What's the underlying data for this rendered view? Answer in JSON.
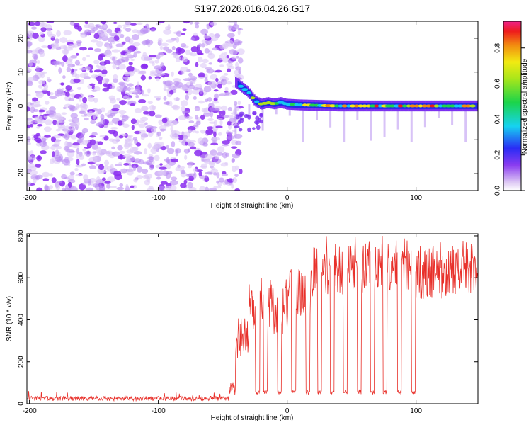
{
  "title": "S197.2026.016.04.26.G17",
  "chart_data": [
    {
      "type": "heatmap",
      "name": "spectrogram",
      "xlabel": "Height of straight line (km)",
      "ylabel": "Frequency (Hz)",
      "xlim": [
        -202,
        148
      ],
      "ylim": [
        -25,
        25
      ],
      "xticks": [
        -200,
        -100,
        0,
        100
      ],
      "yticks": [
        -20,
        -10,
        0,
        10,
        20
      ],
      "colorbar": {
        "label": "Normalized spectral amplitude",
        "range": [
          0,
          0.95
        ],
        "ticks": [
          0.0,
          0.2,
          0.4,
          0.6,
          0.8
        ]
      },
      "noise_region_x": [
        -202,
        -40
      ],
      "signal_track": {
        "x": [
          -40,
          -35,
          -30,
          -25,
          -20,
          -15,
          -10,
          -5,
          0,
          10,
          20,
          40,
          60,
          80,
          100,
          120,
          148
        ],
        "freq": [
          7,
          5.5,
          4,
          1.5,
          0.5,
          1,
          0.6,
          1,
          0.5,
          0.3,
          0.2,
          0,
          0,
          0,
          0,
          0,
          0
        ]
      }
    },
    {
      "type": "line",
      "name": "snr",
      "xlabel": "Height of straight line (km)",
      "ylabel": "SNR (10 * v/v)",
      "xlim": [
        -202,
        148
      ],
      "ylim": [
        0,
        810
      ],
      "xticks": [
        -200,
        -100,
        0,
        100
      ],
      "yticks": [
        0,
        200,
        400,
        600,
        800
      ],
      "color": "#e8302a",
      "segments": [
        {
          "x": [
            -202,
            -45
          ],
          "level": 20
        },
        {
          "x": [
            -40,
            -30
          ],
          "level": 300
        },
        {
          "x": [
            -30,
            0
          ],
          "level": 450
        },
        {
          "x": [
            0,
            20
          ],
          "level": 530
        },
        {
          "x": [
            20,
            60
          ],
          "level": 640
        },
        {
          "x": [
            60,
            100
          ],
          "level": 660
        },
        {
          "x": [
            100,
            148
          ],
          "level": 620
        }
      ],
      "dropouts_x": [
        -23,
        -17,
        -6,
        5,
        16,
        25,
        35,
        45,
        56,
        66,
        76,
        87,
        98
      ]
    }
  ]
}
